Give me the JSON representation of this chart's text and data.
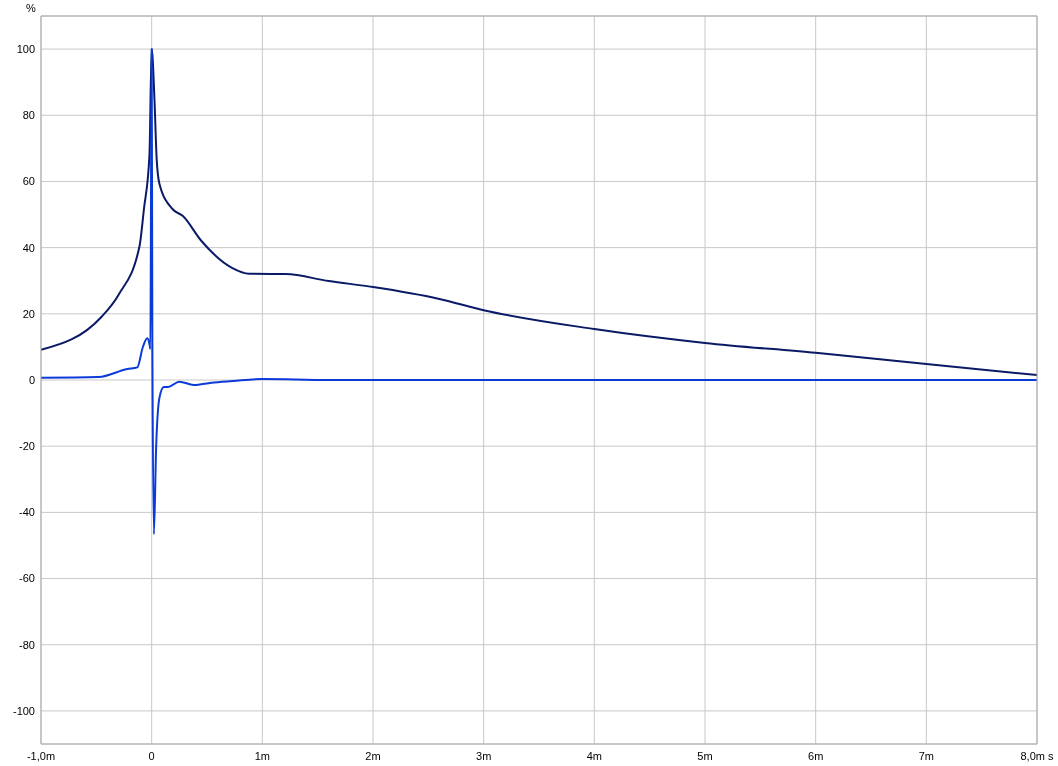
{
  "chart_data": {
    "type": "line",
    "ylabel": "%",
    "xlim": [
      -1,
      8
    ],
    "xticks": [
      {
        "value": -1,
        "label": "-1,0m"
      },
      0,
      {
        "value": 1,
        "label": "1m"
      },
      {
        "value": 2,
        "label": "2m"
      },
      {
        "value": 3,
        "label": "3m"
      },
      {
        "value": 4,
        "label": "4m"
      },
      {
        "value": 5,
        "label": "5m"
      },
      {
        "value": 6,
        "label": "6m"
      },
      {
        "value": 7,
        "label": "7m"
      },
      {
        "value": 8,
        "label": "8,0m s"
      }
    ],
    "ylim": [
      -110,
      110
    ],
    "yticks": [
      -100,
      -80,
      -60,
      -40,
      -20,
      0,
      20,
      40,
      60,
      80,
      100
    ],
    "grid": true,
    "series": [
      {
        "color": "#0a1a66",
        "x": [
          -1.0,
          -0.45,
          -0.3,
          -0.11,
          -0.07,
          -0.02,
          0.0,
          0.025,
          0.045,
          0.07,
          0.19,
          0.28,
          0.45,
          0.73,
          0.88,
          1.21,
          1.6,
          2.0,
          2.6,
          3.0,
          4.0,
          5.0,
          6.0,
          7.0,
          8.0
        ],
        "values": [
          9.1,
          19.2,
          25.7,
          40.4,
          51.6,
          67.9,
          100,
          85,
          66.9,
          59.3,
          51.6,
          49.6,
          42,
          33.8,
          32.1,
          32,
          29.9,
          28.1,
          24.5,
          21.1,
          15.4,
          11.2,
          8.2,
          4.8,
          1.5
        ]
      },
      {
        "color": "#0a3ad8",
        "x": [
          -1.0,
          -0.48,
          -0.22,
          -0.13,
          -0.08,
          -0.04,
          -0.02,
          -0.012,
          0.0,
          0.006,
          0.02,
          0.04,
          0.07,
          0.11,
          0.15,
          0.25,
          0.38,
          0.54,
          0.73,
          1.0,
          1.6,
          3.0,
          5.0,
          8.0
        ],
        "values": [
          0.7,
          0.9,
          3.3,
          3.8,
          9.9,
          12.6,
          10.9,
          9.4,
          100,
          14,
          -46.6,
          -20.7,
          -5.4,
          -2.1,
          -2.1,
          -0.5,
          -1.5,
          -0.8,
          -0.3,
          0.3,
          0,
          0,
          0,
          0
        ]
      }
    ]
  }
}
